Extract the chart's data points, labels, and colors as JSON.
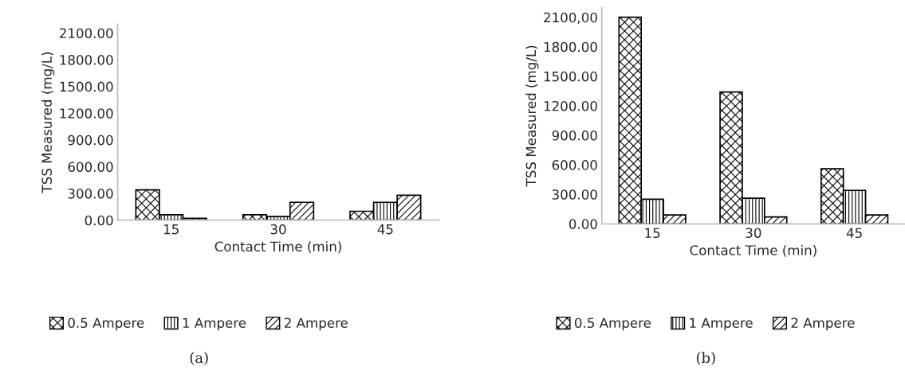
{
  "chart_data": [
    {
      "type": "bar",
      "categories": [
        "15",
        "30",
        "45"
      ],
      "xlabel": "Contact Time (min)",
      "ylabel": "TSS Measured (mg/L)",
      "ylim": [
        0,
        2200
      ],
      "yticks": [
        {
          "value": 0,
          "label": "0.00"
        },
        {
          "value": 300,
          "label": "300.00"
        },
        {
          "value": 600,
          "label": "600.00"
        },
        {
          "value": 900,
          "label": "900.00"
        },
        {
          "value": 1200,
          "label": "1200.00"
        },
        {
          "value": 1500,
          "label": "1500.00"
        },
        {
          "value": 1800,
          "label": "1800.00"
        },
        {
          "value": 2100,
          "label": "2100.00"
        }
      ],
      "series": [
        {
          "name": "0.5 Ampere",
          "color": "#000000",
          "values": [
            340,
            60,
            100
          ]
        },
        {
          "name": "1 Ampere",
          "color": "#000000",
          "values": [
            60,
            40,
            200
          ]
        },
        {
          "name": "2 Ampere",
          "color": "#000000",
          "values": [
            20,
            200,
            280
          ]
        }
      ],
      "legend": "bottom",
      "grid": false,
      "annotations": [
        "(a)"
      ]
    },
    {
      "type": "bar",
      "categories": [
        "15",
        "30",
        "45"
      ],
      "xlabel": "Contact Time (min)",
      "ylabel": "TSS Measured (mg/L)",
      "ylim": [
        0,
        2200
      ],
      "yticks": [
        {
          "value": 0,
          "label": "0.00"
        },
        {
          "value": 300,
          "label": "300.00"
        },
        {
          "value": 600,
          "label": "600.00"
        },
        {
          "value": 900,
          "label": "900.00"
        },
        {
          "value": 1200,
          "label": "1200.00"
        },
        {
          "value": 1500,
          "label": "1500.00"
        },
        {
          "value": 1800,
          "label": "1800.00"
        },
        {
          "value": 2100,
          "label": "2100,00"
        }
      ],
      "series": [
        {
          "name": "0.5 Ampere",
          "color": "#000000",
          "values": [
            2100,
            1340,
            560
          ]
        },
        {
          "name": "1 Ampere",
          "color": "#000000",
          "values": [
            250,
            260,
            340
          ]
        },
        {
          "name": "2 Ampere",
          "color": "#000000",
          "values": [
            90,
            70,
            90
          ]
        }
      ],
      "legend": "bottom",
      "grid": false,
      "annotations": [
        "(b)"
      ]
    }
  ]
}
